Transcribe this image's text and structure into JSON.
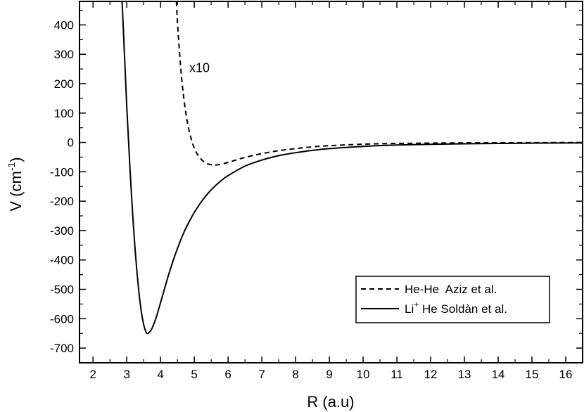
{
  "chart_data": {
    "type": "line",
    "title": "",
    "xlabel": "R (a.u)",
    "ylabel": {
      "main": "V (cm",
      "sup": "-1",
      "close": ")"
    },
    "xlim": [
      1.6,
      16.5
    ],
    "ylim": [
      -750,
      480
    ],
    "xticks": [
      2,
      3,
      4,
      5,
      6,
      7,
      8,
      9,
      10,
      11,
      12,
      13,
      14,
      15,
      16
    ],
    "yticks": [
      -700,
      -600,
      -500,
      -400,
      -300,
      -200,
      -100,
      0,
      100,
      200,
      300,
      400
    ],
    "grid": false,
    "legend_position": "bottom-right",
    "annotation": {
      "text": "x10",
      "x": 4.85,
      "y": 240
    },
    "series": [
      {
        "name": "He-He  Aziz et al.",
        "style": "dashed",
        "color": "#000000",
        "x": [
          4.47,
          4.5,
          4.6,
          4.7,
          4.8,
          4.9,
          5.0,
          5.1,
          5.2,
          5.3,
          5.4,
          5.5,
          5.6,
          5.7,
          5.8,
          6.0,
          6.2,
          6.5,
          7.0,
          7.5,
          8.0,
          8.5,
          9.0,
          10.0,
          11.0,
          12.0,
          13.0,
          14.0,
          15.0,
          16.0,
          16.5
        ],
        "y": [
          480,
          410,
          250,
          140,
          65,
          15,
          -20,
          -42,
          -57,
          -67,
          -73,
          -76,
          -77,
          -76,
          -74,
          -68,
          -61,
          -51,
          -38,
          -28,
          -21,
          -15,
          -11,
          -6,
          -3.5,
          -2.2,
          -1.4,
          -1,
          -0.7,
          -0.5,
          -0.4
        ]
      },
      {
        "name": "Li+ He Soldàn et al.",
        "legend_label": {
          "pre": "Li",
          "sup": "+",
          "post": " He Soldàn et al."
        },
        "style": "solid",
        "color": "#000000",
        "x": [
          2.86,
          2.9,
          2.95,
          3.0,
          3.05,
          3.1,
          3.15,
          3.2,
          3.25,
          3.3,
          3.35,
          3.4,
          3.45,
          3.5,
          3.55,
          3.6,
          3.65,
          3.7,
          3.75,
          3.8,
          3.85,
          3.9,
          4.0,
          4.1,
          4.2,
          4.3,
          4.4,
          4.5,
          4.6,
          4.7,
          4.8,
          5.0,
          5.2,
          5.4,
          5.6,
          5.8,
          6.0,
          6.5,
          7.0,
          7.5,
          8.0,
          8.5,
          9.0,
          10.0,
          11.0,
          12.0,
          13.0,
          14.0,
          15.0,
          16.0,
          16.5
        ],
        "y": [
          480,
          380,
          250,
          120,
          10,
          -100,
          -200,
          -290,
          -370,
          -440,
          -500,
          -550,
          -590,
          -620,
          -640,
          -650,
          -648,
          -642,
          -632,
          -618,
          -603,
          -585,
          -545,
          -505,
          -465,
          -428,
          -393,
          -361,
          -331,
          -304,
          -280,
          -238,
          -203,
          -174,
          -150,
          -130,
          -113,
          -81,
          -60,
          -45,
          -35,
          -27,
          -21,
          -13.5,
          -9,
          -6.3,
          -4.5,
          -3.3,
          -2.5,
          -1.9,
          -1.7
        ]
      }
    ]
  }
}
